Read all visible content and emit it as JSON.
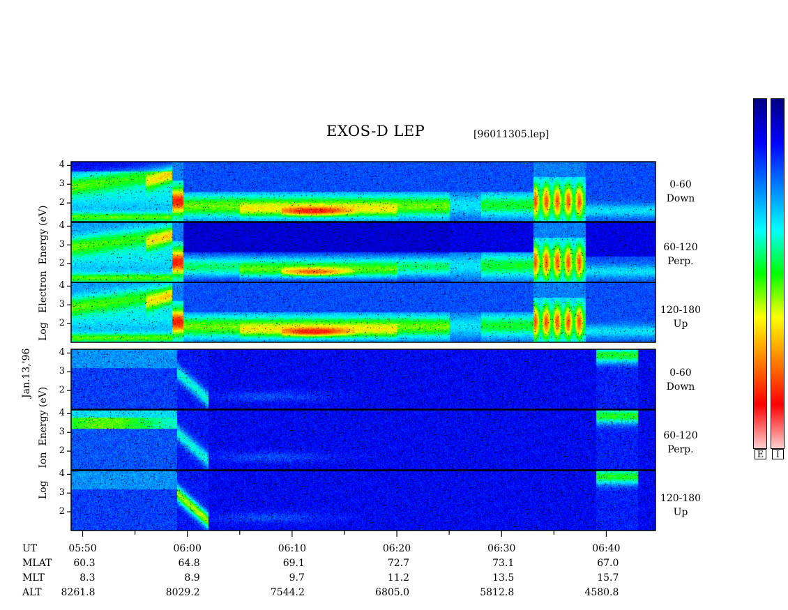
{
  "header": {
    "title": "EXOS-D LEP",
    "file_id": "[96011305.lep]"
  },
  "axis_labels": {
    "date": "Jan.13,'96",
    "electron": [
      "Log",
      "Electron",
      "Energy"
    ],
    "electron_unit": "(eV)",
    "ion": [
      "Log",
      "Ion",
      "Energy"
    ],
    "ion_unit": "(eV)"
  },
  "panel_labels": [
    [
      "0-60",
      "Down"
    ],
    [
      "60-120",
      "Perp."
    ],
    [
      "120-180",
      "Up"
    ],
    [
      "0-60",
      "Down"
    ],
    [
      "60-120",
      "Perp."
    ],
    [
      "120-180",
      "Up"
    ]
  ],
  "colorbar": {
    "labels": [
      "E",
      "I"
    ],
    "colors": [
      "#000080",
      "#0000ff",
      "#0080ff",
      "#00ffff",
      "#00ff00",
      "#ffff00",
      "#ff8000",
      "#ff0000",
      "#ffd0d0"
    ]
  },
  "chart_data": {
    "type": "heatmap",
    "title": "EXOS-D LEP",
    "ylabel": "Log Energy (eV)",
    "yticks": [
      "4",
      "3",
      "2"
    ],
    "ylim": [
      1.0,
      4.2
    ],
    "x_axis_rows": [
      "UT",
      "MLAT",
      "MLT",
      "ALT"
    ],
    "x": [
      "05:50",
      "06:00",
      "06:10",
      "06:20",
      "06:30",
      "06:40"
    ],
    "MLAT": [
      "60.3",
      "64.8",
      "69.1",
      "72.7",
      "73.1",
      "67.0"
    ],
    "MLT": [
      "8.3",
      "8.9",
      "9.7",
      "11.2",
      "13.5",
      "15.7"
    ],
    "ALT": [
      "8261.8",
      "8029.2",
      "7544.2",
      "6805.0",
      "5812.8",
      "4580.8"
    ],
    "xlim_minutes_after_0550": [
      -1.1,
      54.7
    ],
    "panels": [
      {
        "species": "Electron",
        "pitch_angle": "0-60",
        "direction": "Down"
      },
      {
        "species": "Electron",
        "pitch_angle": "60-120",
        "direction": "Perp."
      },
      {
        "species": "Electron",
        "pitch_angle": "120-180",
        "direction": "Up"
      },
      {
        "species": "Ion",
        "pitch_angle": "0-60",
        "direction": "Down"
      },
      {
        "species": "Ion",
        "pitch_angle": "60-120",
        "direction": "Perp."
      },
      {
        "species": "Ion",
        "pitch_angle": "120-180",
        "direction": "Up"
      }
    ]
  }
}
